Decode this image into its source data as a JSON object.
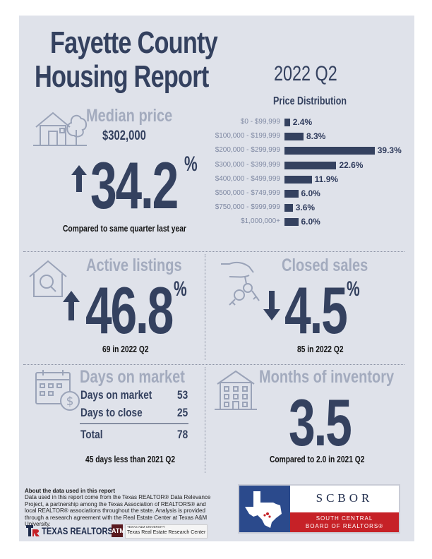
{
  "header": {
    "title_line1": "Fayette County",
    "title_line2": "Housing Report",
    "period": "2022 Q2"
  },
  "price_distribution": {
    "title": "Price Distribution",
    "rows": [
      {
        "label": "$0 - $99,999",
        "value": "2.4%",
        "pct": 2.4
      },
      {
        "label": "$100,000 - $199,999",
        "value": "8.3%",
        "pct": 8.3
      },
      {
        "label": "$200,000 - $299,999",
        "value": "39.3%",
        "pct": 39.3
      },
      {
        "label": "$300,000 - $399,999",
        "value": "22.6%",
        "pct": 22.6
      },
      {
        "label": "$400,000 - $499,999",
        "value": "11.9%",
        "pct": 11.9
      },
      {
        "label": "$500,000 - $749,999",
        "value": "6.0%",
        "pct": 6.0
      },
      {
        "label": "$750,000 - $999,999",
        "value": "3.6%",
        "pct": 3.6
      },
      {
        "label": "$1,000,000+",
        "value": "6.0%",
        "pct": 6.0
      }
    ]
  },
  "median_price": {
    "heading": "Median price",
    "value": "$302,000",
    "change": "34.2",
    "percent_sign": "%",
    "direction": "up",
    "caption": "Compared to same quarter last year"
  },
  "active_listings": {
    "heading": "Active listings",
    "change": "46.8",
    "percent_sign": "%",
    "direction": "up",
    "caption": "69 in 2022 Q2"
  },
  "closed_sales": {
    "heading": "Closed sales",
    "change": "4.5",
    "percent_sign": "%",
    "direction": "down",
    "caption": "85 in 2022 Q2"
  },
  "days_on_market": {
    "heading": "Days on market",
    "rows": [
      {
        "label": "Days on market",
        "value": "53"
      },
      {
        "label": "Days to close",
        "value": "25"
      }
    ],
    "total_label": "Total",
    "total_value": "78",
    "caption": "45 days less than 2021 Q2"
  },
  "months_inventory": {
    "heading": "Months of inventory",
    "value": "3.5",
    "caption": "Compared to 2.0 in 2021 Q2"
  },
  "footer": {
    "about_title": "About the data used in this report",
    "about_text": "Data used in this report come from the Texas REALTOR® Data Relevance Project, a partnership among the Texas Association of REALTORS® and local REALTOR® associations throughout the state. Analysis is provided through a research agreement with the Real Estate Center at Texas A&M University.",
    "texas_realtors": "TEXAS REALTORS",
    "tamu_small": "TEXAS A&M UNIVERSITY",
    "tamu_center": "Texas Real Estate Research Center"
  },
  "scbor": {
    "acronym": "SCBOR",
    "line1": "SOUTH CENTRAL",
    "line2": "BOARD OF REALTORS®"
  },
  "colors": {
    "navy": "#34415f",
    "muted": "#a3abbe",
    "background": "#dfe2ea",
    "scbor_blue": "#2b4a8c",
    "scbor_red": "#c62127"
  }
}
